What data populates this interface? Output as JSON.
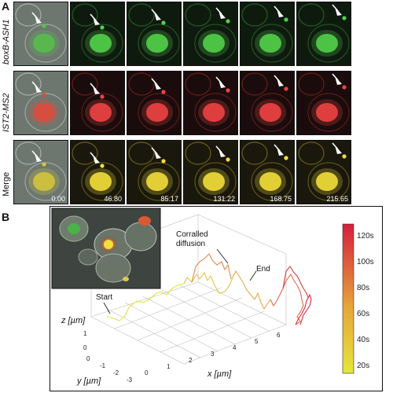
{
  "panel_a": {
    "letter": "A",
    "rows": [
      {
        "label": "boxB-ASH1",
        "italic": true,
        "channel": "green"
      },
      {
        "label": "IST2-MS2",
        "italic": true,
        "channel": "red"
      },
      {
        "label": "Merge",
        "italic": false,
        "channel": "yellow"
      }
    ],
    "times": [
      "0.00",
      "46.80",
      "85.17",
      "131.22",
      "168.75",
      "215.65"
    ],
    "colors": {
      "green": "#38c03a",
      "red": "#e03030",
      "yellow": "#e6d230",
      "bright_field": "#6f7a6f"
    }
  },
  "panel_b": {
    "letter": "B",
    "annotations": {
      "start": "Start",
      "end": "End",
      "corralled": "Corralled\ndiffusion"
    },
    "axis_labels": {
      "x": "x [µm]",
      "y": "y [µm]",
      "z": "z [µm]"
    },
    "x_ticks": [
      "0",
      "1",
      "2",
      "3",
      "4",
      "5",
      "6"
    ],
    "y_ticks": [
      "0",
      "-1",
      "-2",
      "-3"
    ],
    "z_ticks": [
      "1",
      "0"
    ],
    "colorbar": {
      "ticks": [
        "120s",
        "100s",
        "80s",
        "60s",
        "40s",
        "20s"
      ],
      "top_color": "#d3203c",
      "mid_color": "#e8a040",
      "bottom_color": "#e0e040"
    }
  }
}
